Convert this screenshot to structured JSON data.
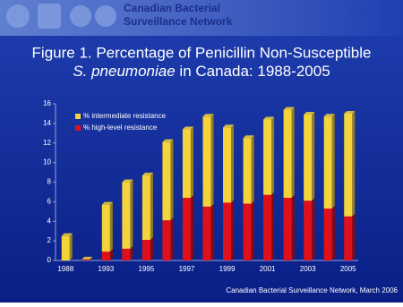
{
  "header": {
    "org_lines": [
      "Canadian Bacterial",
      "Surveillance Network"
    ]
  },
  "chart_data": {
    "type": "stacked-bar",
    "title_lines": [
      "Figure 1.  Percentage of Penicillin Non-Susceptible",
      {
        "italic": "S. pneumoniae",
        "rest": " in Canada: 1988-2005"
      }
    ],
    "categories": [
      "1988",
      null,
      "1993",
      null,
      "1995",
      null,
      "1997",
      null,
      "1999",
      null,
      "2001",
      null,
      "2003",
      null,
      "2005"
    ],
    "series": [
      {
        "name": "% intermediate resistance",
        "color": "#f5d33a",
        "values": [
          2.5,
          0,
          4.8,
          6.8,
          6.6,
          8.0,
          7.0,
          9.2,
          7.7,
          6.7,
          7.7,
          9.0,
          8.8,
          9.4,
          10.5
        ]
      },
      {
        "name": "% high-level resistance",
        "color": "#e0101a",
        "values": [
          0,
          0.1,
          0.9,
          1.2,
          2.1,
          4.1,
          6.4,
          5.5,
          5.9,
          5.8,
          6.7,
          6.4,
          6.1,
          5.3,
          4.5
        ]
      }
    ],
    "ylim": [
      0,
      16
    ],
    "yticks": [
      0,
      2,
      4,
      6,
      8,
      10,
      12,
      14,
      16
    ],
    "grid": false,
    "legend": "top-left"
  },
  "footer": {
    "source": "Canadian Bacterial Surveillance Network, March 2006"
  }
}
